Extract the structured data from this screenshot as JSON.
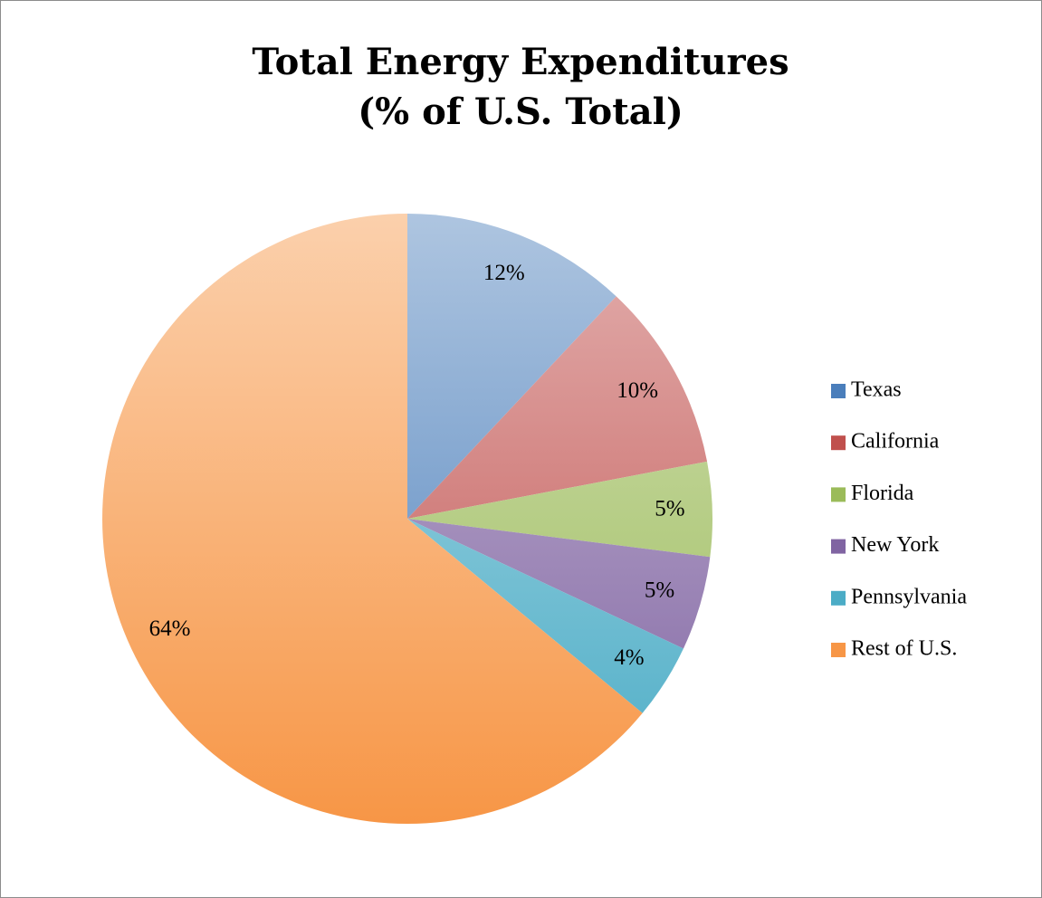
{
  "chart_data": {
    "type": "pie",
    "title": [
      "Total Energy Expenditures",
      "(% of U.S. Total)"
    ],
    "categories": [
      "Texas",
      "California",
      "Florida",
      "New York",
      "Pennsylvania",
      "Rest of U.S."
    ],
    "values": [
      12,
      10,
      5,
      5,
      4,
      64
    ],
    "value_labels": [
      "12%",
      "10%",
      "5%",
      "5%",
      "4%",
      "64%"
    ],
    "colors": [
      "#4a7ebb",
      "#c0504d",
      "#9bbb59",
      "#8064a2",
      "#4bacc6",
      "#f79646"
    ],
    "legend": "right"
  }
}
